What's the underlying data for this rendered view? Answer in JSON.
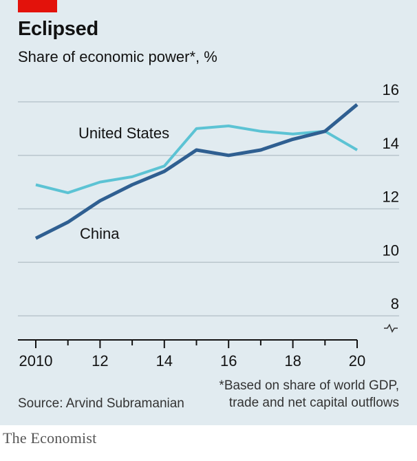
{
  "header": {
    "title": "Eclipsed",
    "subtitle": "Share of economic power*, %"
  },
  "colors": {
    "accent": "#e3120b",
    "background": "#e1ebf0",
    "united_states": "#5cc3d4",
    "china": "#2f5f91"
  },
  "chart_data": {
    "type": "line",
    "title": "Eclipsed",
    "subtitle": "Share of economic power*, %",
    "x": [
      2010,
      2011,
      2012,
      2013,
      2014,
      2015,
      2016,
      2017,
      2018,
      2019,
      2020
    ],
    "xticks": [
      2010,
      2012,
      2014,
      2016,
      2018,
      2020
    ],
    "xtick_labels": [
      "2010",
      "12",
      "14",
      "16",
      "18",
      "20"
    ],
    "yticks": [
      8,
      10,
      12,
      14,
      16
    ],
    "ylim": [
      7.1,
      16
    ],
    "y_axis_break": true,
    "y_axis_position": "right",
    "grid": true,
    "series": [
      {
        "name": "United States",
        "color": "#5cc3d4",
        "values": [
          12.9,
          12.6,
          13.0,
          13.2,
          13.6,
          15.0,
          15.1,
          14.9,
          14.8,
          14.9,
          14.2
        ]
      },
      {
        "name": "China",
        "color": "#2f5f91",
        "values": [
          10.9,
          11.5,
          12.3,
          12.9,
          13.4,
          14.2,
          14.0,
          14.2,
          14.6,
          14.9,
          15.9
        ]
      }
    ]
  },
  "footer": {
    "footnote": "*Based on share of world GDP,\ntrade and net capital outflows",
    "source": "Source: Arvind Subramanian",
    "brand": "The Economist"
  }
}
